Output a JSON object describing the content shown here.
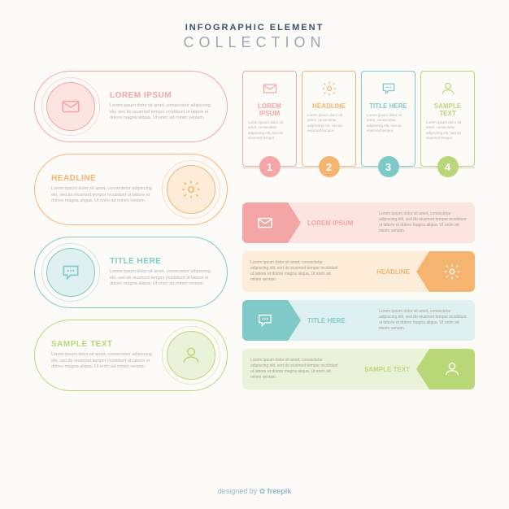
{
  "header": {
    "line1": "INFOGRAPHIC ELEMENT",
    "line2": "COLLECTION"
  },
  "lorem_short": "Lorem ipsum dolor sit amet, consectetur adipiscing elit, sed do eiusmod tempor incididunt ut labore et dolore magna aliqua. Ut enim ad minim veniam.",
  "lorem_card": "Lorem ipsum dolor sit amet, consectetur adipiscing elit, sed do eiusmod tempor.",
  "colors": {
    "pink": "#f4a6a6",
    "pink_fill": "#fce4e0",
    "orange": "#f5b571",
    "orange_fill": "#fcecd8",
    "teal": "#7fcac8",
    "teal_fill": "#def0ef",
    "green": "#b8d878",
    "green_fill": "#eaf3d9"
  },
  "pills": [
    {
      "title": "LOREM IPSUM",
      "icon": "mail",
      "color": "pink"
    },
    {
      "title": "HEADLINE",
      "icon": "gear",
      "color": "orange"
    },
    {
      "title": "TITLE HERE",
      "icon": "chat",
      "color": "teal"
    },
    {
      "title": "SAMPLE TEXT",
      "icon": "user",
      "color": "green"
    }
  ],
  "cards": [
    {
      "title": "LOREM IPSUM",
      "icon": "mail",
      "color": "pink",
      "num": "1"
    },
    {
      "title": "HEADLINE",
      "icon": "gear",
      "color": "orange",
      "num": "2"
    },
    {
      "title": "TITLE HERE",
      "icon": "chat",
      "color": "teal",
      "num": "3"
    },
    {
      "title": "SAMPLE TEXT",
      "icon": "user",
      "color": "green",
      "num": "4"
    }
  ],
  "banners": [
    {
      "title": "LOREM IPSUM",
      "icon": "mail",
      "color": "pink"
    },
    {
      "title": "HEADLINE",
      "icon": "gear",
      "color": "orange"
    },
    {
      "title": "TITLE HERE",
      "icon": "chat",
      "color": "teal"
    },
    {
      "title": "SAMPLE TEXT",
      "icon": "user",
      "color": "green"
    }
  ],
  "footer": {
    "prefix": "designed by ",
    "brand": "freepik"
  }
}
